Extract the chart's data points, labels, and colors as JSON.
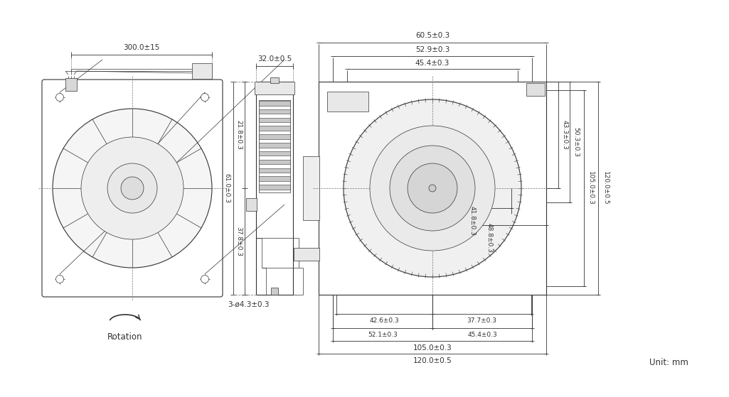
{
  "bg_color": "#ffffff",
  "line_color": "#333333",
  "fig_width": 10.25,
  "fig_height": 5.59,
  "dpi": 100,
  "annotations": {
    "wire_length": "300.0±15",
    "connector_width": "32.0±0.5",
    "hole_dim": "3-ø4.3±0.3",
    "rotation": "Rotation",
    "unit": "Unit: mm",
    "top_width": "60.5±0.3",
    "top_w2": "52.9±0.3",
    "top_w3": "45.4±0.3",
    "right_h1": "43.3±0.3",
    "right_h2": "50.3±0.3",
    "right_h3": "105.0±0.3",
    "right_h4": "120.0±0.5",
    "right_v1": "41.8±0.3",
    "right_v2": "48.8±0.3",
    "left_dim1": "61.0±0.3",
    "left_dim2": "21.8±0.3",
    "left_dim3": "37.8±0.3",
    "bottom1": "42.6±0.3",
    "bottom2": "37.7±0.3",
    "bottom3": "52.1±0.3",
    "bottom4": "45.4±0.3",
    "bottom5": "105.0±0.3",
    "bottom6": "120.0±0.5"
  }
}
